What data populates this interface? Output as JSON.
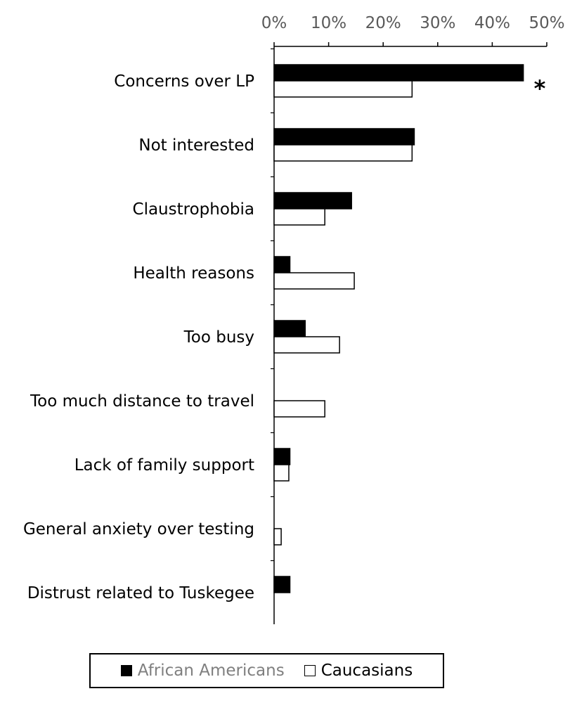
{
  "chart_data": {
    "type": "bar",
    "orientation": "horizontal",
    "categories": [
      "Concerns over LP",
      "Not interested",
      "Claustrophobia",
      "Health reasons",
      "Too busy",
      "Too much distance to travel",
      "Lack of family support",
      "General anxiety over testing",
      "Distrust related to Tuskegee"
    ],
    "series": [
      {
        "name": "African Americans",
        "color": "#000000",
        "values": [
          45.7,
          25.7,
          14.2,
          2.9,
          5.7,
          0,
          2.9,
          0,
          2.9
        ]
      },
      {
        "name": "Caucasians",
        "color": "#ffffff",
        "values": [
          25.3,
          25.3,
          9.3,
          14.7,
          12.0,
          9.3,
          2.7,
          1.3,
          0
        ]
      }
    ],
    "xlim": [
      0,
      50
    ],
    "x_ticks": [
      "0%",
      "10%",
      "20%",
      "30%",
      "40%",
      "50%"
    ],
    "x_axis_position": "top",
    "annotation": {
      "text": "*",
      "category": "Concerns over LP"
    },
    "legend_position": "bottom",
    "grid": false
  }
}
